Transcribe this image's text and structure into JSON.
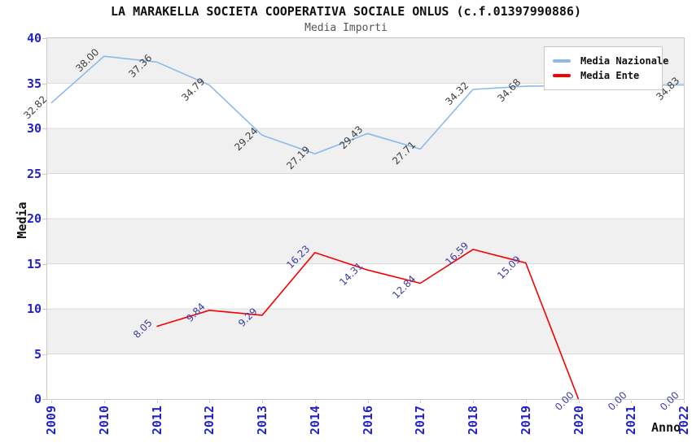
{
  "header": {
    "title": "LA MARAKELLA SOCIETA COOPERATIVA SOCIALE ONLUS (c.f.01397990886)",
    "subtitle": "Media Importi"
  },
  "chart_data": {
    "type": "line",
    "title": "LA MARAKELLA SOCIETA COOPERATIVA SOCIALE ONLUS (c.f.01397990886)",
    "subtitle": "Media Importi",
    "xlabel": "Anno",
    "ylabel": "Media",
    "ylim": [
      0,
      40
    ],
    "ytick_step": 5,
    "yticks": [
      0,
      5,
      10,
      15,
      20,
      25,
      30,
      35,
      40
    ],
    "grid": "horizontal-bands",
    "legend_position": "top-right",
    "categories": [
      "2009",
      "2010",
      "2011",
      "2012",
      "2013",
      "2014",
      "2016",
      "2017",
      "2018",
      "2019",
      "2020",
      "2021",
      "2022"
    ],
    "series": [
      {
        "name": "Media Nazionale",
        "color": "#8CB9EA",
        "label_color": "#3F3F3F",
        "values": [
          32.82,
          38.0,
          37.36,
          34.79,
          29.24,
          27.19,
          29.43,
          27.71,
          34.32,
          34.68,
          34.73,
          34.78,
          34.83
        ],
        "labels": [
          "32.82",
          "38.00",
          "37.36",
          "34.79",
          "29.24",
          "27.19",
          "29.43",
          "27.71",
          "34.32",
          "34.68",
          "",
          "",
          "34.83"
        ]
      },
      {
        "name": "Media Ente",
        "color": "#F40000",
        "label_color": "#3D3DA3",
        "values": [
          null,
          null,
          8.05,
          9.84,
          9.29,
          16.23,
          14.31,
          12.84,
          16.59,
          15.09,
          0.0,
          0.0,
          0.0
        ],
        "labels": [
          "",
          "",
          "8.05",
          "9.84",
          "9.29",
          "16.23",
          "14.31",
          "12.84",
          "16.59",
          "15.09",
          "0.00",
          "0.00",
          "0.00"
        ],
        "draw_through_index": 10
      }
    ],
    "colors": {
      "band_dark": "#F0F0F0",
      "band_light": "#FFFFFF",
      "gridline": "#DCDCDC",
      "border": "#C8C8C8",
      "axis_tick_label": "#2222CC"
    }
  }
}
